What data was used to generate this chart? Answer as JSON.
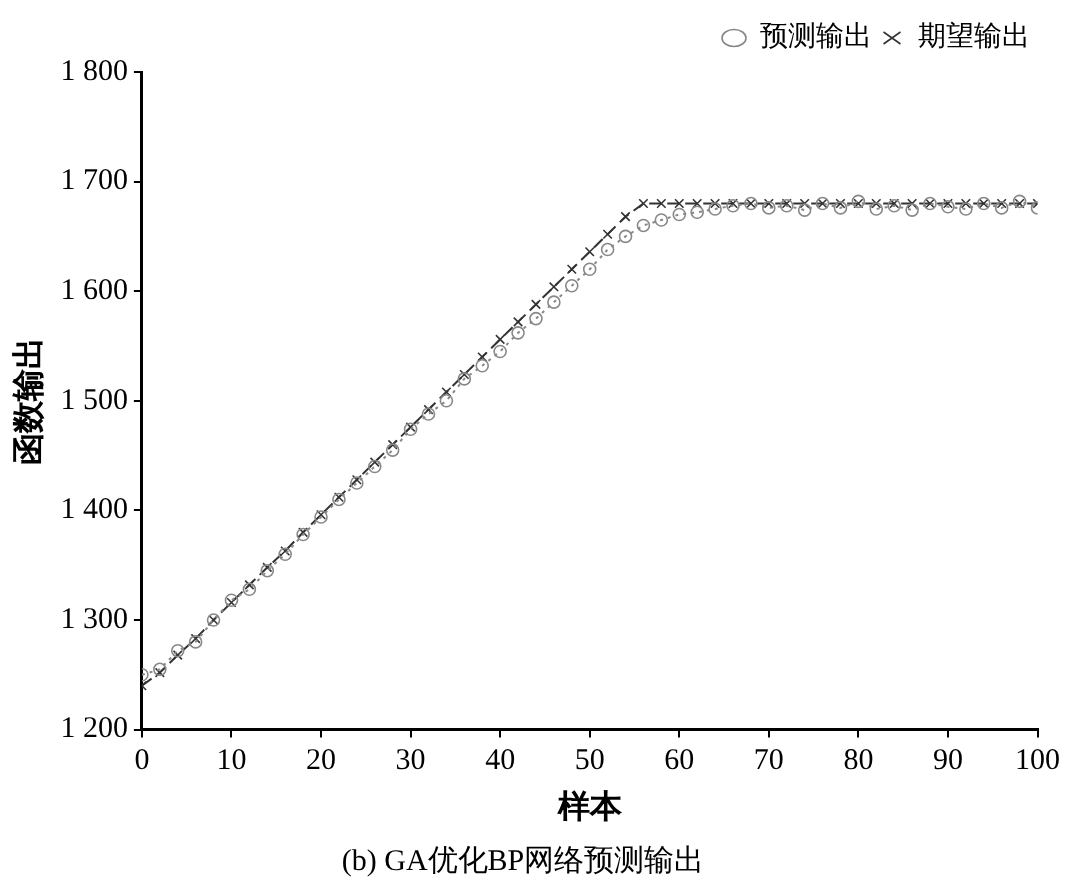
{
  "chart_data": {
    "type": "line",
    "title": "(b) GA优化BP网络预测输出",
    "xlabel": "样本",
    "ylabel": "函数输出",
    "x": [
      0,
      2,
      4,
      6,
      8,
      10,
      12,
      14,
      16,
      18,
      20,
      22,
      24,
      26,
      28,
      30,
      32,
      34,
      36,
      38,
      40,
      42,
      44,
      46,
      48,
      50,
      52,
      54,
      56,
      58,
      60,
      62,
      64,
      66,
      68,
      70,
      72,
      74,
      76,
      78,
      80,
      82,
      84,
      86,
      88,
      90,
      92,
      94,
      96,
      98,
      100
    ],
    "series": [
      {
        "name": "预测输出",
        "color": "#888888",
        "marker": "circle",
        "line_style": "dotted",
        "values": [
          1250,
          1255,
          1272,
          1280,
          1300,
          1318,
          1328,
          1345,
          1360,
          1378,
          1394,
          1410,
          1425,
          1440,
          1455,
          1474,
          1488,
          1500,
          1520,
          1532,
          1545,
          1562,
          1575,
          1590,
          1605,
          1620,
          1638,
          1650,
          1660,
          1665,
          1670,
          1672,
          1675,
          1678,
          1680,
          1676,
          1678,
          1674,
          1680,
          1676,
          1682,
          1675,
          1678,
          1674,
          1680,
          1677,
          1675,
          1680,
          1676,
          1682,
          1676
        ]
      },
      {
        "name": "期望输出",
        "color": "#333333",
        "marker": "cross",
        "line_style": "dashed",
        "values": [
          1240,
          1252,
          1268,
          1283,
          1300,
          1316,
          1332,
          1348,
          1363,
          1380,
          1396,
          1412,
          1428,
          1444,
          1460,
          1476,
          1492,
          1508,
          1524,
          1540,
          1556,
          1572,
          1588,
          1604,
          1620,
          1636,
          1652,
          1668,
          1680,
          1680,
          1680,
          1680,
          1680,
          1680,
          1680,
          1680,
          1680,
          1680,
          1680,
          1680,
          1680,
          1680,
          1680,
          1680,
          1680,
          1680,
          1680,
          1680,
          1680,
          1680,
          1680
        ]
      }
    ],
    "xlim": [
      0,
      100
    ],
    "xticks": [
      0,
      10,
      20,
      30,
      40,
      50,
      60,
      70,
      80,
      90,
      100
    ],
    "ylim": [
      1200,
      1800
    ],
    "yticks": [
      {
        "value": 1200,
        "label": "1 200"
      },
      {
        "value": 1300,
        "label": "1 300"
      },
      {
        "value": 1400,
        "label": "1 400"
      },
      {
        "value": 1500,
        "label": "1 500"
      },
      {
        "value": 1600,
        "label": "1 600"
      },
      {
        "value": 1700,
        "label": "1 700"
      },
      {
        "value": 1800,
        "label": "1 800"
      }
    ],
    "grid": false,
    "legend": "top right"
  }
}
